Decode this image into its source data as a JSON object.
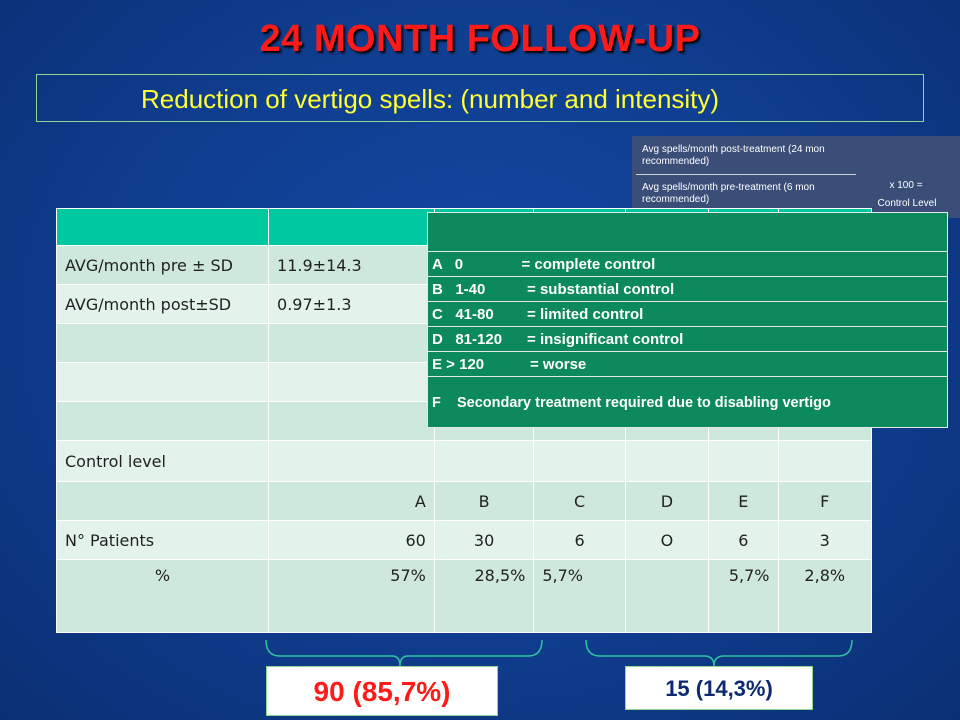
{
  "title": "24 MONTH FOLLOW-UP",
  "subtitle": "Reduction of vertigo spells:  (number and intensity)",
  "formula": {
    "numerator": "Avg  spells/month post-treatment (24 mon recommended)",
    "denominator": "Avg  spells/month pre-treatment (6 mon recommended)",
    "multiplier": "x  100  =",
    "result": "Control Level"
  },
  "table": {
    "avg_pre_label": "AVG/month pre ± SD",
    "avg_pre_value": "11.9±14.3",
    "avg_post_label": "AVG/month post±SD",
    "avg_post_value": "0.97±1.3",
    "control_level_label": "Control level",
    "levels": [
      "A",
      "B",
      "C",
      "D",
      "E",
      "F"
    ],
    "patients_label": "N° Patients",
    "patients": [
      "60",
      "30",
      "6",
      "O",
      "6",
      "3"
    ],
    "pct_label": "%",
    "pct": [
      "57%",
      "28,5%",
      "5,7%",
      "",
      "5,7%",
      "2,8%"
    ]
  },
  "legend": [
    "A   0              = complete control",
    "B   1-40          = substantial control",
    "C   41-80        = limited control",
    "D   81-120      = insignificant control",
    "E > 120           = worse",
    "F    Secondary treatment required due to disabling vertigo"
  ],
  "summary": {
    "left": "90 (85,7%)",
    "right": "15 (14,3%)"
  },
  "colors": {
    "background": "#0f3d8e",
    "title": "#ff1a1a",
    "subtitle": "#ffff33",
    "table_header": "#00c8a0",
    "legend": "#0d8a5c"
  }
}
